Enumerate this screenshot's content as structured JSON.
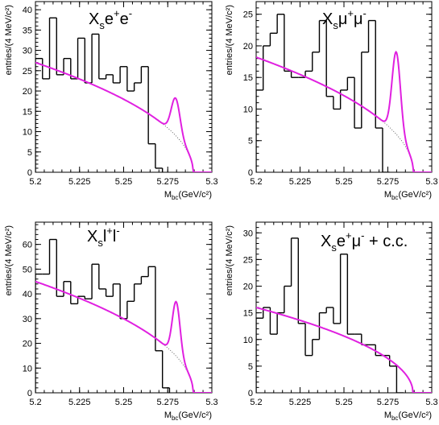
{
  "chart_data": [
    {
      "type": "histogram",
      "title": "X_s e^+ e^-",
      "title_parts": [
        {
          "t": "X"
        },
        {
          "t": "s",
          "sub": true
        },
        {
          "t": "e"
        },
        {
          "t": "+",
          "sup": true
        },
        {
          "t": "e"
        },
        {
          "t": "-",
          "sup": true
        }
      ],
      "xlabel_main": "M",
      "xlabel_sub": "bc",
      "xlabel_unit": "(GeV/c²)",
      "ylabel": "entries/(4 MeV/c²)",
      "xlim": [
        5.2,
        5.3
      ],
      "ylim": [
        0,
        42
      ],
      "xticks": [
        5.2,
        5.225,
        5.25,
        5.275,
        5.3
      ],
      "xtick_labels": [
        "5.2",
        "5.225",
        "5.25",
        "5.275",
        "5.3"
      ],
      "yticks": [
        0,
        5,
        10,
        15,
        20,
        25,
        30,
        35,
        40
      ],
      "bin_edges_start": 5.2,
      "bin_width": 0.004,
      "values": [
        28,
        23,
        38,
        24,
        28,
        23,
        33,
        22,
        34,
        23,
        24,
        22,
        26,
        20,
        22,
        26,
        7,
        1
      ],
      "fit": {
        "y0": 27.0,
        "m0": 5.2894,
        "peak_mean": 5.2795,
        "peak_sigma": 0.0025,
        "peak_amp": 9.2
      },
      "background": {
        "y0": 27.0,
        "m0": 5.2894
      }
    },
    {
      "type": "histogram",
      "title": "X_s μ^+ μ^-",
      "title_parts": [
        {
          "t": "X"
        },
        {
          "t": "s",
          "sub": true
        },
        {
          "t": "μ"
        },
        {
          "t": "+",
          "sup": true
        },
        {
          "t": "μ"
        },
        {
          "t": "-",
          "sup": true
        }
      ],
      "xlabel_main": "M",
      "xlabel_sub": "bc",
      "xlabel_unit": "(GeV/c²)",
      "ylabel": "entries/(4 MeV/c²)",
      "xlim": [
        5.2,
        5.3
      ],
      "ylim": [
        0,
        27
      ],
      "xticks": [
        5.2,
        5.225,
        5.25,
        5.275,
        5.3
      ],
      "xtick_labels": [
        "5.2",
        "5.225",
        "5.25",
        "5.275",
        "5.3"
      ],
      "yticks": [
        0,
        5,
        10,
        15,
        20,
        25
      ],
      "bin_edges_start": 5.2,
      "bin_width": 0.004,
      "values": [
        13,
        20,
        22,
        25,
        16,
        15,
        15,
        16,
        19,
        24,
        12,
        10,
        13,
        15,
        7,
        19,
        24,
        7,
        0
      ],
      "fit": {
        "y0": 18.2,
        "m0": 5.2895,
        "peak_mean": 5.2798,
        "peak_sigma": 0.0024,
        "peak_amp": 13.0
      },
      "background": {
        "y0": 18.2,
        "m0": 5.2895
      }
    },
    {
      "type": "histogram",
      "title": "X_s l^+ l^-",
      "title_parts": [
        {
          "t": "X"
        },
        {
          "t": "s",
          "sub": true
        },
        {
          "t": "l"
        },
        {
          "t": "+",
          "sup": true
        },
        {
          "t": "l"
        },
        {
          "t": "-",
          "sup": true
        }
      ],
      "xlabel_main": "M",
      "xlabel_sub": "bc",
      "xlabel_unit": "(GeV/c²)",
      "ylabel": "entries/(4 MeV/c²)",
      "xlim": [
        5.2,
        5.3
      ],
      "ylim": [
        0,
        69
      ],
      "xticks": [
        5.2,
        5.225,
        5.25,
        5.275,
        5.3
      ],
      "xtick_labels": [
        "5.2",
        "5.225",
        "5.25",
        "5.275",
        "5.3"
      ],
      "yticks": [
        0,
        10,
        20,
        30,
        40,
        50,
        60
      ],
      "bin_edges_start": 5.2,
      "bin_width": 0.004,
      "values": [
        48,
        48,
        62,
        39,
        45,
        36,
        39,
        38,
        52,
        42,
        39,
        44,
        30,
        37,
        44,
        47,
        51,
        17,
        2
      ],
      "fit": {
        "y0": 45.0,
        "m0": 5.2894,
        "peak_mean": 5.2798,
        "peak_sigma": 0.0022,
        "peak_amp": 22.0
      },
      "background": {
        "y0": 45.0,
        "m0": 5.2894
      }
    },
    {
      "type": "histogram",
      "title": "X_s e^+ μ^- + c.c.",
      "title_parts": [
        {
          "t": "X"
        },
        {
          "t": "s",
          "sub": true
        },
        {
          "t": "e"
        },
        {
          "t": "+",
          "sup": true
        },
        {
          "t": "μ"
        },
        {
          "t": "-",
          "sup": true
        },
        {
          "t": " + c.c."
        }
      ],
      "xlabel_main": "M",
      "xlabel_sub": "bc",
      "xlabel_unit": "(GeV/c²)",
      "ylabel": "entries/(4 MeV/c²)",
      "xlim": [
        5.2,
        5.3
      ],
      "ylim": [
        0,
        32
      ],
      "xticks": [
        5.2,
        5.225,
        5.25,
        5.275,
        5.3
      ],
      "xtick_labels": [
        "5.2",
        "5.225",
        "5.25",
        "5.275",
        "5.3"
      ],
      "yticks": [
        0,
        5,
        10,
        15,
        20,
        25,
        30
      ],
      "bin_edges_start": 5.2,
      "bin_width": 0.004,
      "values": [
        14,
        16,
        11,
        15,
        20,
        29,
        13,
        7,
        10,
        15,
        16,
        13,
        26,
        11,
        11,
        9,
        9,
        7,
        7,
        5,
        0
      ],
      "fit": {
        "y0": 16.0,
        "m0": 5.2893
      },
      "background": null
    }
  ]
}
